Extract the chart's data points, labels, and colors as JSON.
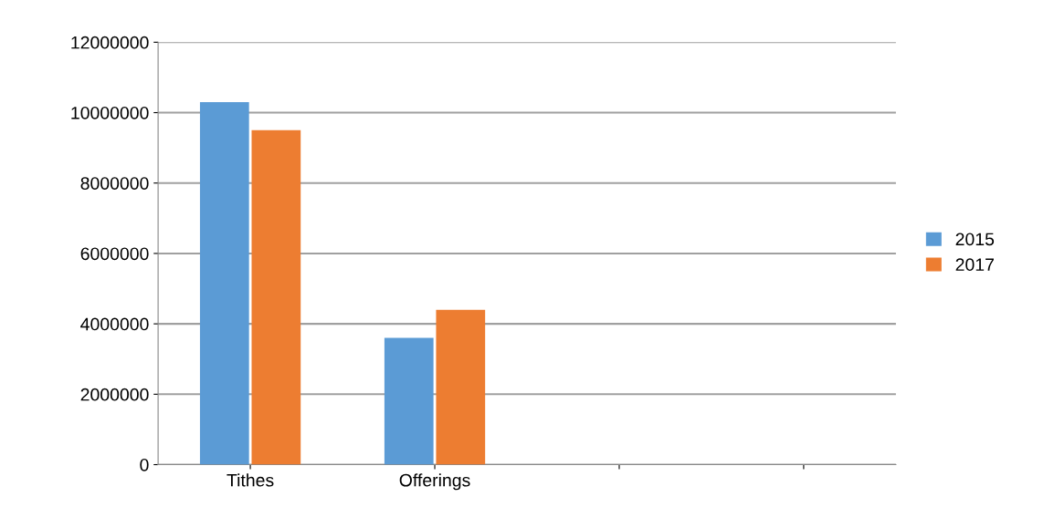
{
  "chart_data": {
    "type": "bar",
    "categories": [
      "Tithes",
      "Offerings",
      null,
      null
    ],
    "series": [
      {
        "name": "2015",
        "color": "#5b9bd5",
        "values": [
          10300000,
          3600000,
          null,
          null
        ]
      },
      {
        "name": "2017",
        "color": "#ed7d31",
        "values": [
          9500000,
          4400000,
          null,
          null
        ]
      }
    ],
    "ylim": [
      0,
      12000000
    ],
    "yticks": [
      0,
      2000000,
      4000000,
      6000000,
      8000000,
      10000000,
      12000000
    ],
    "grid": "y",
    "legend": "right"
  }
}
